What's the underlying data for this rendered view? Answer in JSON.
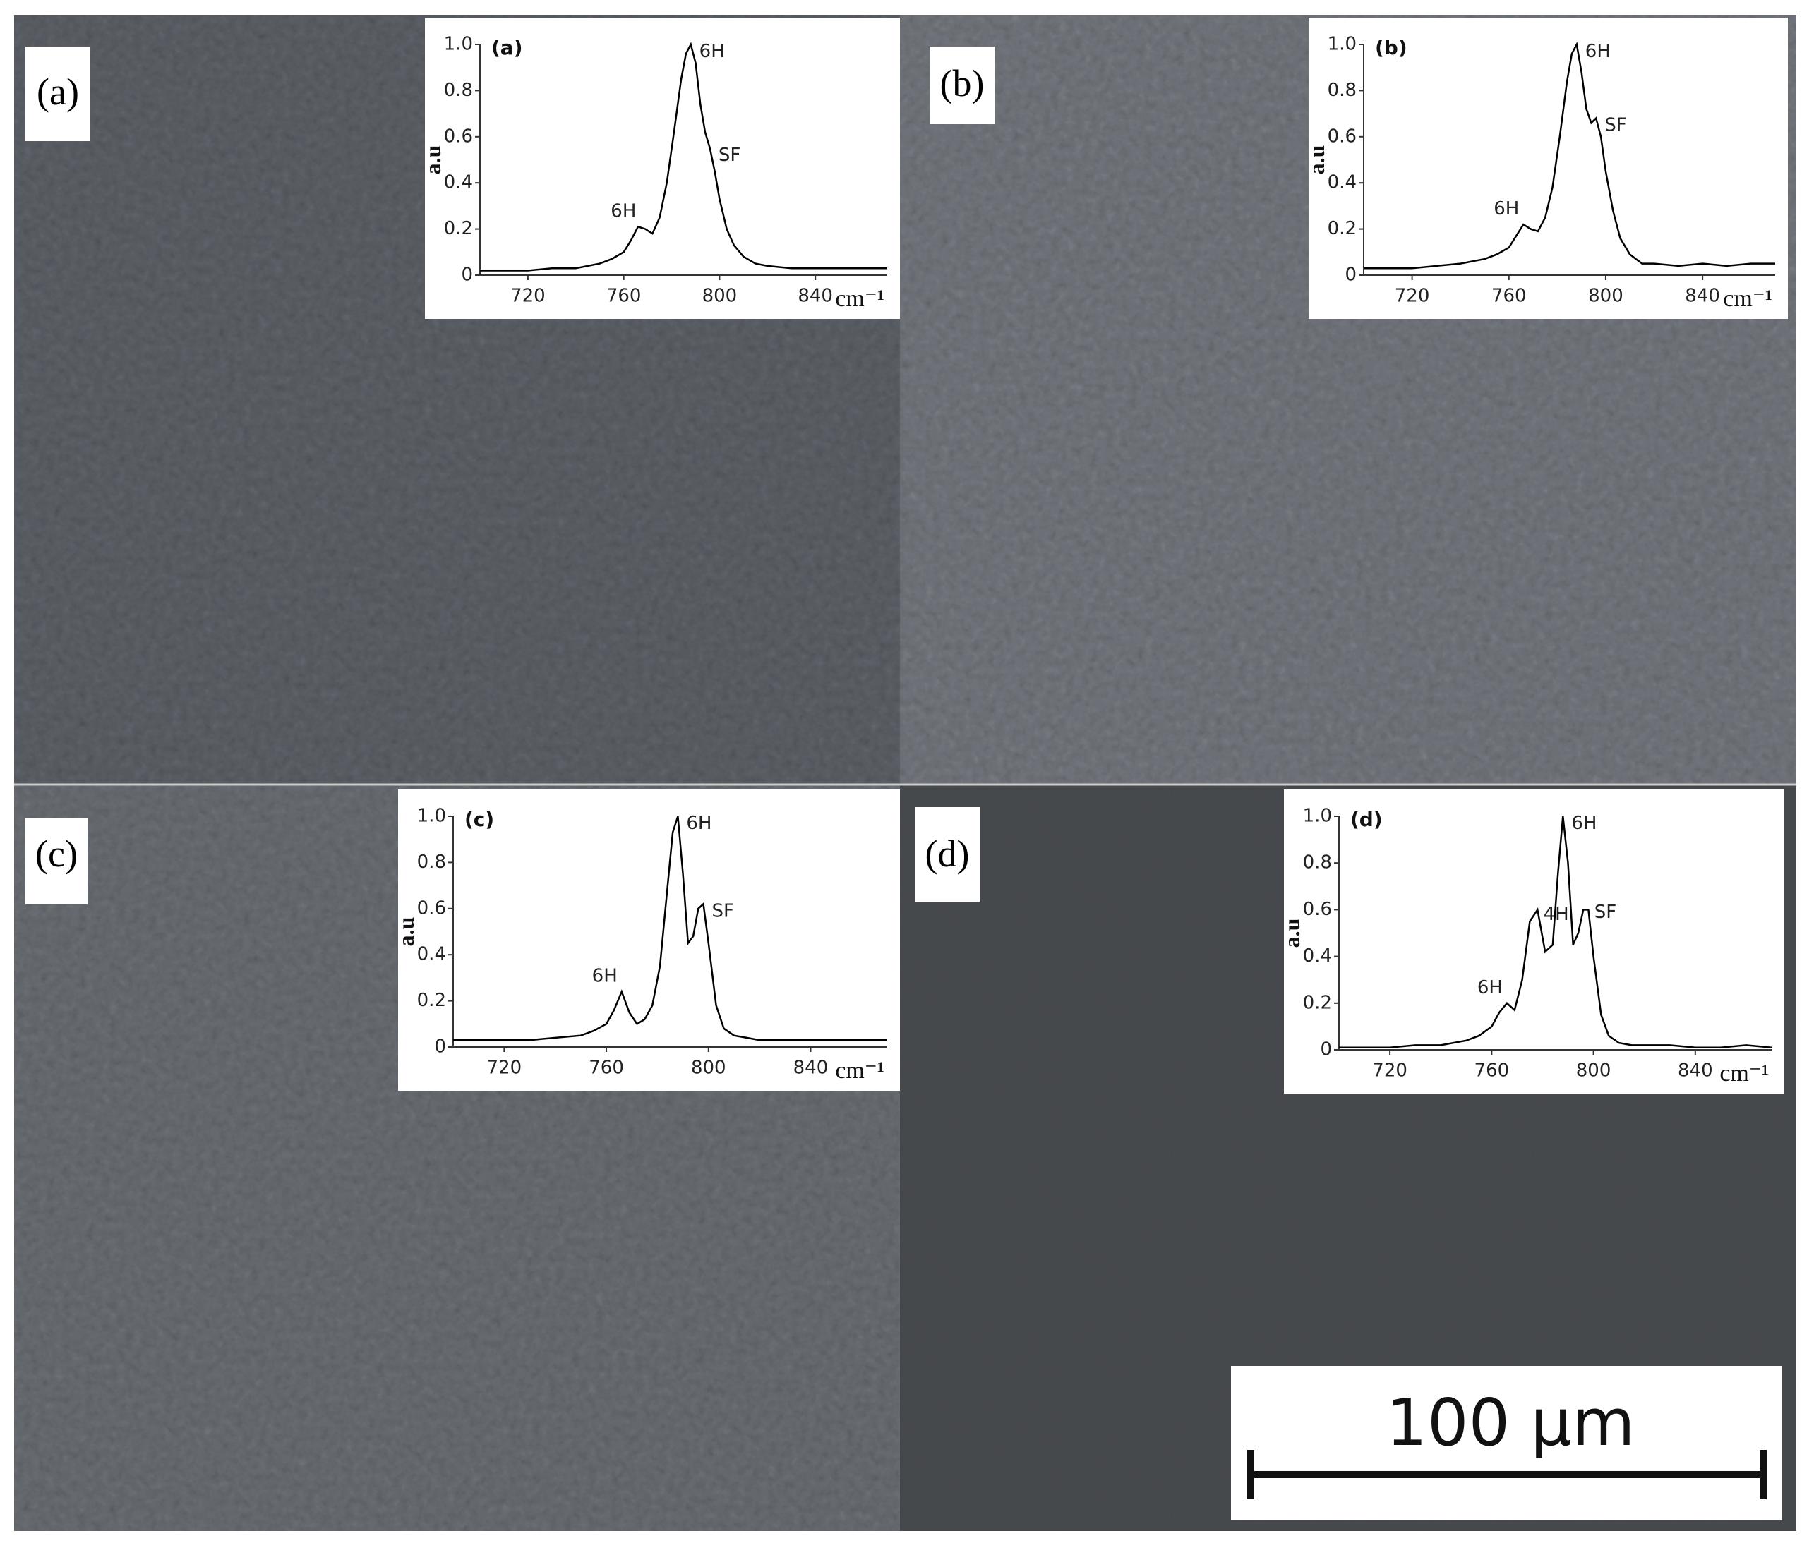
{
  "panels": [
    {
      "label": "(a)"
    },
    {
      "label": "(b)"
    },
    {
      "label": "(c)"
    },
    {
      "label": "(d)"
    }
  ],
  "scale_bar": "100 µm",
  "chart_data": [
    {
      "type": "line",
      "title": "(a)",
      "y_label": "a.u",
      "x_label": "cm⁻¹",
      "x": [
        700,
        710,
        720,
        730,
        740,
        750,
        755,
        760,
        763,
        766,
        769,
        772,
        775,
        778,
        781,
        784,
        786,
        788,
        790,
        792,
        794,
        796,
        798,
        800,
        803,
        806,
        810,
        815,
        820,
        830,
        840,
        850,
        860,
        870
      ],
      "values": [
        0.02,
        0.02,
        0.02,
        0.03,
        0.03,
        0.05,
        0.07,
        0.1,
        0.15,
        0.21,
        0.2,
        0.18,
        0.25,
        0.4,
        0.62,
        0.85,
        0.96,
        1.0,
        0.92,
        0.74,
        0.62,
        0.55,
        0.45,
        0.33,
        0.2,
        0.13,
        0.08,
        0.05,
        0.04,
        0.03,
        0.03,
        0.03,
        0.03,
        0.03
      ],
      "color": "#000000",
      "xlim": [
        700,
        870
      ],
      "ylim": [
        0,
        1
      ],
      "xticks": [
        720,
        760,
        800,
        840
      ],
      "yticks": [
        0,
        0.2,
        0.4,
        0.6,
        0.8,
        {
          "value": 1,
          "label": "1.0"
        }
      ],
      "annotations": [
        {
          "text": "6H",
          "x": 767,
          "y": 0.21
        },
        {
          "text": "6H",
          "x": 788,
          "y": 1.0
        },
        {
          "text": "SF",
          "x": 796,
          "y": 0.55
        }
      ]
    },
    {
      "type": "line",
      "title": "(b)",
      "y_label": "a.u",
      "x_label": "cm⁻¹",
      "x": [
        700,
        710,
        720,
        730,
        740,
        750,
        755,
        760,
        763,
        766,
        769,
        772,
        775,
        778,
        781,
        784,
        786,
        788,
        790,
        792,
        794,
        796,
        798,
        800,
        803,
        806,
        810,
        815,
        820,
        830,
        840,
        850,
        860,
        870
      ],
      "values": [
        0.03,
        0.03,
        0.03,
        0.04,
        0.05,
        0.07,
        0.09,
        0.12,
        0.17,
        0.22,
        0.2,
        0.19,
        0.25,
        0.38,
        0.6,
        0.84,
        0.96,
        1.0,
        0.88,
        0.72,
        0.66,
        0.68,
        0.6,
        0.45,
        0.28,
        0.16,
        0.09,
        0.05,
        0.05,
        0.04,
        0.05,
        0.04,
        0.05,
        0.05
      ],
      "color": "#000000",
      "xlim": [
        700,
        870
      ],
      "ylim": [
        0,
        1
      ],
      "xticks": [
        720,
        760,
        800,
        840
      ],
      "yticks": [
        0,
        0.2,
        0.4,
        0.6,
        0.8,
        {
          "value": 1,
          "label": "1.0"
        }
      ],
      "annotations": [
        {
          "text": "6H",
          "x": 766,
          "y": 0.22
        },
        {
          "text": "6H",
          "x": 788,
          "y": 1.0
        },
        {
          "text": "SF",
          "x": 796,
          "y": 0.68
        }
      ]
    },
    {
      "type": "line",
      "title": "(c)",
      "y_label": "a.u",
      "x_label": "cm⁻¹",
      "x": [
        700,
        710,
        720,
        730,
        740,
        750,
        755,
        760,
        763,
        766,
        769,
        772,
        775,
        778,
        781,
        784,
        786,
        788,
        790,
        792,
        794,
        796,
        798,
        800,
        803,
        806,
        810,
        815,
        820,
        830,
        840,
        850,
        860,
        870
      ],
      "values": [
        0.03,
        0.03,
        0.03,
        0.03,
        0.04,
        0.05,
        0.07,
        0.1,
        0.16,
        0.24,
        0.15,
        0.1,
        0.12,
        0.18,
        0.35,
        0.7,
        0.93,
        1.0,
        0.75,
        0.45,
        0.48,
        0.6,
        0.62,
        0.45,
        0.18,
        0.08,
        0.05,
        0.04,
        0.03,
        0.03,
        0.03,
        0.03,
        0.03,
        0.03
      ],
      "color": "#000000",
      "xlim": [
        700,
        870
      ],
      "ylim": [
        0,
        1
      ],
      "xticks": [
        720,
        760,
        800,
        840
      ],
      "yticks": [
        0,
        0.2,
        0.4,
        0.6,
        0.8,
        {
          "value": 1,
          "label": "1.0"
        }
      ],
      "annotations": [
        {
          "text": "6H",
          "x": 766,
          "y": 0.24
        },
        {
          "text": "6H",
          "x": 788,
          "y": 1.0
        },
        {
          "text": "SF",
          "x": 798,
          "y": 0.62
        }
      ]
    },
    {
      "type": "line",
      "title": "(d)",
      "y_label": "a.u",
      "x_label": "cm⁻¹",
      "x": [
        700,
        710,
        720,
        730,
        740,
        750,
        755,
        760,
        763,
        766,
        769,
        772,
        775,
        778,
        781,
        784,
        786,
        788,
        790,
        792,
        794,
        796,
        798,
        800,
        803,
        806,
        810,
        815,
        820,
        830,
        840,
        850,
        860,
        870
      ],
      "values": [
        0.01,
        0.01,
        0.01,
        0.02,
        0.02,
        0.04,
        0.06,
        0.1,
        0.16,
        0.2,
        0.17,
        0.3,
        0.55,
        0.6,
        0.42,
        0.45,
        0.75,
        1.0,
        0.8,
        0.45,
        0.5,
        0.6,
        0.6,
        0.4,
        0.15,
        0.06,
        0.03,
        0.02,
        0.02,
        0.02,
        0.01,
        0.01,
        0.02,
        0.01
      ],
      "color": "#000000",
      "xlim": [
        700,
        870
      ],
      "ylim": [
        0,
        1
      ],
      "xticks": [
        720,
        760,
        800,
        840
      ],
      "yticks": [
        0,
        0.2,
        0.4,
        0.6,
        0.8,
        {
          "value": 1,
          "label": "1.0"
        }
      ],
      "annotations": [
        {
          "text": "6H",
          "x": 766,
          "y": 0.2
        },
        {
          "text": "4H",
          "x": 777,
          "y": 0.61
        },
        {
          "text": "6H",
          "x": 788,
          "y": 1.0
        },
        {
          "text": "SF",
          "x": 797,
          "y": 0.62
        }
      ]
    }
  ]
}
